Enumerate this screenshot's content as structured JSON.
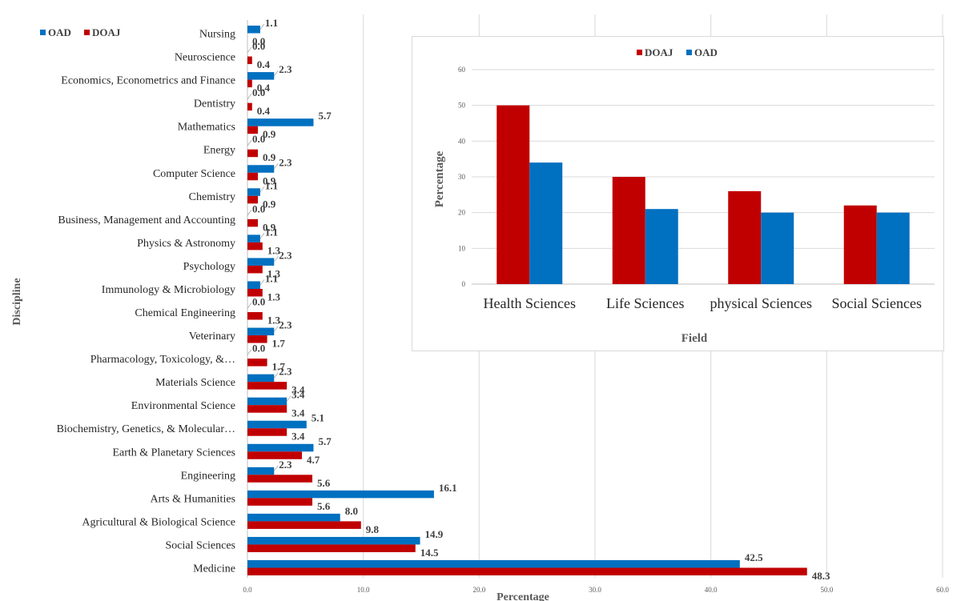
{
  "chart_data": [
    {
      "type": "bar",
      "orientation": "horizontal",
      "categories": [
        "Nursing",
        "Neuroscience",
        "Economics, Econometrics and Finance",
        "Dentistry",
        "Mathematics",
        "Energy",
        "Computer Science",
        "Chemistry",
        "Business, Management and Accounting",
        "Physics & Astronomy",
        "Psychology",
        "Immunology & Microbiology",
        "Chemical Engineering",
        "Veterinary",
        "Pharmacology, Toxicology, &…",
        "Materials Science",
        "Environmental Science",
        "Biochemistry, Genetics, & Molecular…",
        "Earth & Planetary Sciences",
        "Engineering",
        "Arts & Humanities",
        "Agricultural & Biological Science",
        "Social Sciences",
        "Medicine"
      ],
      "series": [
        {
          "name": "OAD",
          "color": "#0070c0",
          "values": [
            1.1,
            0.0,
            2.3,
            0.0,
            5.7,
            0.0,
            2.3,
            1.1,
            0.0,
            1.1,
            2.3,
            1.1,
            0.0,
            2.3,
            0.0,
            2.3,
            3.4,
            5.1,
            5.7,
            2.3,
            16.1,
            8.0,
            14.9,
            42.5
          ],
          "labels": [
            "1.1",
            "0.0",
            "2.3",
            "0.0",
            "5.7",
            "0.0",
            "2.3",
            "1.1",
            "0.0",
            "1.1",
            "2.3",
            "1.1",
            "0.0",
            "2.3",
            "0.0",
            "2.3",
            "3.4",
            "5.1",
            "5.7",
            "2.3",
            "16.1",
            "8.0",
            "14.9",
            "42.5"
          ]
        },
        {
          "name": "DOAJ",
          "color": "#c00000",
          "values": [
            0.0,
            0.4,
            0.4,
            0.4,
            0.9,
            0.9,
            0.9,
            0.9,
            0.9,
            1.3,
            1.3,
            1.3,
            1.3,
            1.7,
            1.7,
            3.4,
            3.4,
            3.4,
            4.7,
            5.6,
            5.6,
            9.8,
            14.5,
            48.3
          ],
          "labels": [
            "0.0",
            "0.4",
            "0.4",
            "0.4",
            "0.9",
            "0.9",
            "0.9",
            "0.9",
            "0.9",
            "1.3",
            "1.3",
            "1.3",
            "1.3",
            "1.7",
            "1.7",
            "3.4",
            "3.4",
            "3.4",
            "4.7",
            "5.6",
            "5.6",
            "9.8",
            "14.5",
            "48.3"
          ]
        }
      ],
      "xlabel": "Percentage",
      "ylabel": "Discipline",
      "xlim": [
        0,
        60
      ],
      "xticks": [
        "0.0",
        "10.0",
        "20.0",
        "30.0",
        "40.0",
        "50.0",
        "60.0"
      ],
      "grid": "vertical",
      "legend": {
        "position": "top-left",
        "entries": [
          "OAD",
          "DOAJ"
        ]
      }
    },
    {
      "type": "bar",
      "orientation": "vertical",
      "categories": [
        "Health Sciences",
        "Life Sciences",
        "physical Sciences",
        "Social Sciences"
      ],
      "series": [
        {
          "name": "DOAJ",
          "color": "#c00000",
          "values": [
            50,
            30,
            26,
            22
          ]
        },
        {
          "name": "OAD",
          "color": "#0070c0",
          "values": [
            34,
            21,
            20,
            20
          ]
        }
      ],
      "xlabel": "Field",
      "ylabel": "Percentage",
      "ylim": [
        0,
        60
      ],
      "yticks": [
        "0",
        "10",
        "20",
        "30",
        "40",
        "50",
        "60"
      ],
      "grid": "horizontal",
      "legend": {
        "position": "top",
        "entries": [
          "DOAJ",
          "OAD"
        ]
      }
    }
  ]
}
